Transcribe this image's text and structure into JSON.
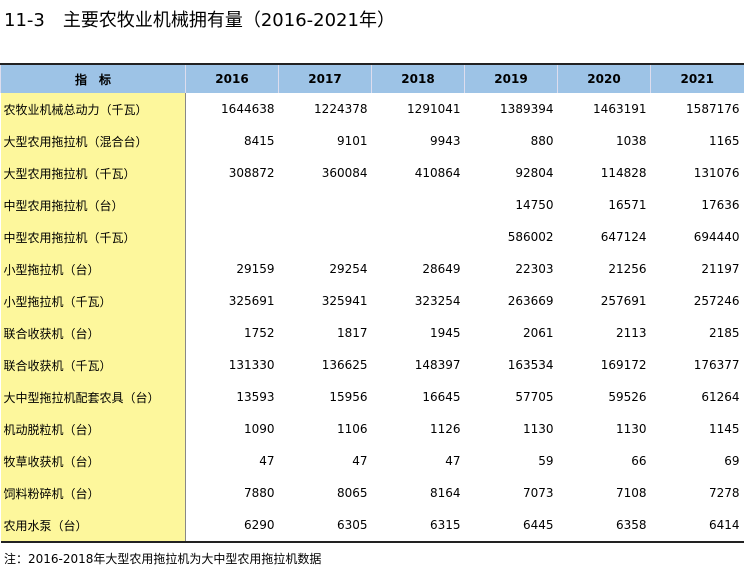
{
  "header": {
    "title": "11-3　主要农牧业机械拥有量（2016-2021年）"
  },
  "table": {
    "columns": [
      "指　标",
      "2016",
      "2017",
      "2018",
      "2019",
      "2020",
      "2021"
    ],
    "rows": [
      [
        "农牧业机械总动力（千瓦）",
        1644638,
        1224378,
        1291041,
        1389394,
        1463191,
        1587176
      ],
      [
        "大型农用拖拉机（混合台）",
        8415,
        9101,
        9943,
        880,
        1038,
        1165
      ],
      [
        "大型农用拖拉机（千瓦）",
        308872,
        360084,
        410864,
        92804,
        114828,
        131076
      ],
      [
        "中型农用拖拉机（台）",
        null,
        null,
        null,
        14750,
        16571,
        17636
      ],
      [
        "中型农用拖拉机（千瓦）",
        null,
        null,
        null,
        586002,
        647124,
        694440
      ],
      [
        "小型拖拉机（台）",
        29159,
        29254,
        28649,
        22303,
        21256,
        21197
      ],
      [
        "小型拖拉机（千瓦）",
        325691,
        325941,
        323254,
        263669,
        257691,
        257246
      ],
      [
        "联合收获机（台）",
        1752,
        1817,
        1945,
        2061,
        2113,
        2185
      ],
      [
        "联合收获机（千瓦）",
        131330,
        136625,
        148397,
        163534,
        169172,
        176377
      ],
      [
        "大中型拖拉机配套农具（台）",
        13593,
        15956,
        16645,
        57705,
        59526,
        61264
      ],
      [
        "机动脱粒机（台）",
        1090,
        1106,
        1126,
        1130,
        1130,
        1145
      ],
      [
        "牧草收获机（台）",
        47,
        47,
        47,
        59,
        66,
        69
      ],
      [
        "饲料粉碎机（台）",
        7880,
        8065,
        8164,
        7073,
        7108,
        7278
      ],
      [
        "农用水泵（台）",
        6290,
        6305,
        6315,
        6445,
        6358,
        6414
      ]
    ]
  },
  "note": "注：2016-2018年大型农用拖拉机为大中型农用拖拉机数据"
}
